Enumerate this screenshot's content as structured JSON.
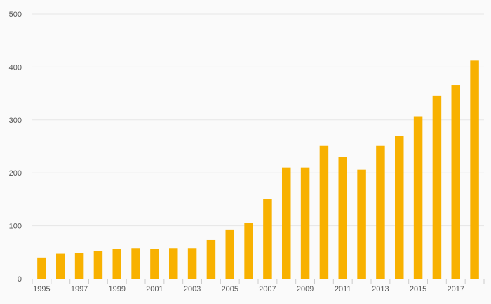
{
  "chart_data": {
    "type": "bar",
    "title": "",
    "xlabel": "",
    "ylabel": "",
    "categories": [
      "1995",
      "1996",
      "1997",
      "1998",
      "1999",
      "2000",
      "2001",
      "2002",
      "2003",
      "2004",
      "2005",
      "2006",
      "2007",
      "2008",
      "2009",
      "2010",
      "2011",
      "2012",
      "2013",
      "2014",
      "2015",
      "2016",
      "2017",
      "2018"
    ],
    "values": [
      40,
      47,
      49,
      53,
      57,
      58,
      57,
      58,
      58,
      73,
      93,
      105,
      150,
      210,
      210,
      251,
      230,
      206,
      251,
      270,
      307,
      345,
      366,
      412
    ],
    "x_tick_labels": [
      "1995",
      "1997",
      "1999",
      "2001",
      "2003",
      "2005",
      "2007",
      "2009",
      "2011",
      "2013",
      "2015",
      "2017"
    ],
    "y_ticks": [
      "0",
      "100",
      "200",
      "300",
      "400",
      "500"
    ],
    "ylim": [
      0,
      500
    ],
    "grid": true,
    "legend": "none",
    "colors": {
      "bar": "#f8b100",
      "grid": "#e6e6e6",
      "axis": "#cccccc",
      "text": "#555555",
      "background": "#fafafa"
    }
  }
}
